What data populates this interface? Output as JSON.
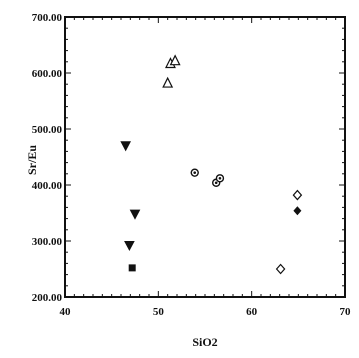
{
  "chart_data": {
    "type": "scatter",
    "title": "",
    "xlabel": "SiO2",
    "ylabel": "Sr/Eu",
    "xlim": [
      40,
      70
    ],
    "ylim": [
      200,
      700
    ],
    "x_ticks": [
      40,
      50,
      60,
      70
    ],
    "x_tick_labels": [
      "40",
      "50",
      "60",
      "70"
    ],
    "y_ticks": [
      200,
      300,
      400,
      500,
      600,
      700
    ],
    "y_tick_labels": [
      "200.00",
      "300.00",
      "400.00",
      "500.00",
      "600.00",
      "700.00"
    ],
    "grid": false,
    "legend": "none",
    "series": [
      {
        "marker": "open-triangle-up",
        "points": [
          [
            51.0,
            582
          ],
          [
            51.3,
            617
          ],
          [
            51.8,
            622
          ]
        ]
      },
      {
        "marker": "filled-triangle-down",
        "points": [
          [
            46.5,
            470
          ],
          [
            47.5,
            348
          ],
          [
            46.9,
            292
          ]
        ]
      },
      {
        "marker": "filled-square",
        "points": [
          [
            47.2,
            252
          ]
        ]
      },
      {
        "marker": "circle",
        "points": [
          [
            53.9,
            422
          ],
          [
            56.2,
            404
          ],
          [
            56.6,
            412
          ]
        ]
      },
      {
        "marker": "open-diamond",
        "points": [
          [
            64.9,
            382
          ],
          [
            63.1,
            250
          ]
        ]
      },
      {
        "marker": "filled-diamond",
        "points": [
          [
            64.9,
            354
          ]
        ]
      }
    ]
  }
}
